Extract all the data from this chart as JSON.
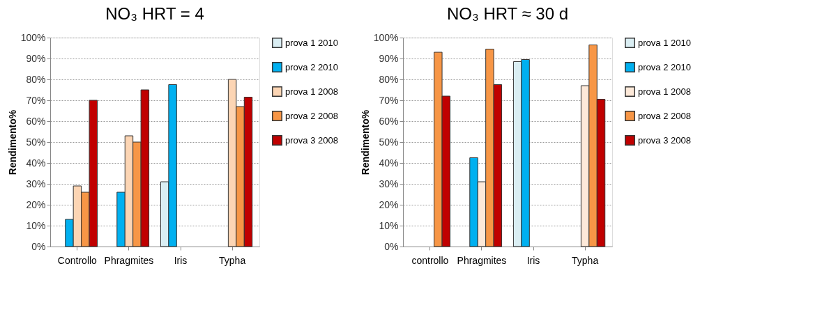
{
  "chart_data": [
    {
      "type": "bar",
      "title": "NO₃ HRT = 4",
      "ylabel": "Rendimento%",
      "categories": [
        "Controllo",
        "Phragmites",
        "Iris",
        "Typha"
      ],
      "ylim": [
        0,
        100
      ],
      "yticks": [
        {
          "value": 0,
          "label": "0%"
        },
        {
          "value": 10,
          "label": "10%"
        },
        {
          "value": 20,
          "label": "20%"
        },
        {
          "value": 30,
          "label": "30%"
        },
        {
          "value": 40,
          "label": "40%"
        },
        {
          "value": 50,
          "label": "50%"
        },
        {
          "value": 60,
          "label": "60%"
        },
        {
          "value": 70,
          "label": "70%"
        },
        {
          "value": 80,
          "label": "80%"
        },
        {
          "value": 90,
          "label": "90%"
        },
        {
          "value": 100,
          "label": "100%"
        }
      ],
      "grid": "y",
      "legend": "right",
      "series": [
        {
          "name": "prova 1 2010",
          "color": "#daeef3",
          "values": [
            null,
            null,
            31,
            null
          ]
        },
        {
          "name": "prova 2 2010",
          "color": "#00b0f0",
          "values": [
            13,
            26,
            77.5,
            null
          ]
        },
        {
          "name": "prova 1 2008",
          "color": "#fcd5b4",
          "values": [
            29,
            53,
            null,
            80
          ]
        },
        {
          "name": "prova 2 2008",
          "color": "#f79646",
          "values": [
            26,
            50,
            null,
            67
          ]
        },
        {
          "name": "prova 3 2008",
          "color": "#c00000",
          "values": [
            70,
            75,
            null,
            71.5
          ]
        }
      ]
    },
    {
      "type": "bar",
      "title": "NO₃  HRT ≈ 30 d",
      "ylabel": "Rendimento%",
      "categories": [
        "controllo",
        "Phragmites",
        "Iris",
        "Typha"
      ],
      "ylim": [
        0,
        100
      ],
      "yticks": [
        {
          "value": 0,
          "label": "0%"
        },
        {
          "value": 10,
          "label": "10%"
        },
        {
          "value": 20,
          "label": "20%"
        },
        {
          "value": 30,
          "label": "30%"
        },
        {
          "value": 40,
          "label": "40%"
        },
        {
          "value": 50,
          "label": "50%"
        },
        {
          "value": 60,
          "label": "60%"
        },
        {
          "value": 70,
          "label": "70%"
        },
        {
          "value": 80,
          "label": "80%"
        },
        {
          "value": 90,
          "label": "90%"
        },
        {
          "value": 100,
          "label": "100%"
        }
      ],
      "grid": "y",
      "legend": "right",
      "series": [
        {
          "name": "prova 1 2010",
          "color": "#daeef3",
          "values": [
            null,
            null,
            88.5,
            null
          ]
        },
        {
          "name": "prova 2 2010",
          "color": "#00b0f0",
          "values": [
            null,
            42.5,
            89.5,
            null
          ]
        },
        {
          "name": "prova 1 2008",
          "color": "#fde9d9",
          "values": [
            null,
            31,
            null,
            77
          ]
        },
        {
          "name": "prova 2 2008",
          "color": "#f79646",
          "values": [
            93,
            94.5,
            null,
            96.5
          ]
        },
        {
          "name": "prova 3 2008",
          "color": "#c00000",
          "values": [
            72,
            77.5,
            null,
            70.5
          ]
        }
      ]
    }
  ]
}
